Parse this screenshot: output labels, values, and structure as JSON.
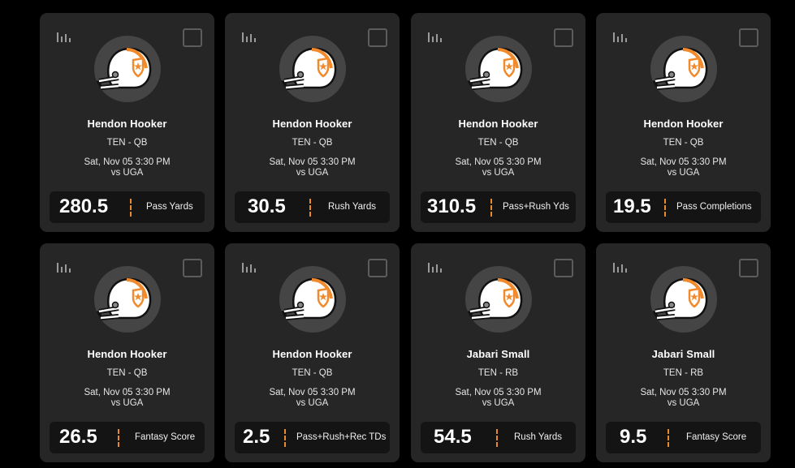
{
  "cards": [
    {
      "name": "Hendon Hooker",
      "team": "TEN - QB",
      "time": "Sat, Nov 05 3:30 PM",
      "opponent": "vs UGA",
      "line": "280.5",
      "stat": "Pass Yards"
    },
    {
      "name": "Hendon Hooker",
      "team": "TEN - QB",
      "time": "Sat, Nov 05 3:30 PM",
      "opponent": "vs UGA",
      "line": "30.5",
      "stat": "Rush Yards"
    },
    {
      "name": "Hendon Hooker",
      "team": "TEN - QB",
      "time": "Sat, Nov 05 3:30 PM",
      "opponent": "vs UGA",
      "line": "310.5",
      "stat": "Pass+Rush Yds"
    },
    {
      "name": "Hendon Hooker",
      "team": "TEN - QB",
      "time": "Sat, Nov 05 3:30 PM",
      "opponent": "vs UGA",
      "line": "19.5",
      "stat": "Pass Completions"
    },
    {
      "name": "Hendon Hooker",
      "team": "TEN - QB",
      "time": "Sat, Nov 05 3:30 PM",
      "opponent": "vs UGA",
      "line": "26.5",
      "stat": "Fantasy Score"
    },
    {
      "name": "Hendon Hooker",
      "team": "TEN - QB",
      "time": "Sat, Nov 05 3:30 PM",
      "opponent": "vs UGA",
      "line": "2.5",
      "stat": "Pass+Rush+Rec TDs"
    },
    {
      "name": "Jabari Small",
      "team": "TEN - RB",
      "time": "Sat, Nov 05 3:30 PM",
      "opponent": "vs UGA",
      "line": "54.5",
      "stat": "Rush Yards"
    },
    {
      "name": "Jabari Small",
      "team": "TEN - RB",
      "time": "Sat, Nov 05 3:30 PM",
      "opponent": "vs UGA",
      "line": "9.5",
      "stat": "Fantasy Score"
    }
  ],
  "icons": {
    "stats": "bar-stats-icon",
    "select": "checkbox",
    "avatar": "team-helmet-icon"
  },
  "colors": {
    "background": "#000000",
    "card": "#262626",
    "line_box": "#141414",
    "accent": "#e8892f",
    "helmet_stripe": "#f08a2c"
  }
}
